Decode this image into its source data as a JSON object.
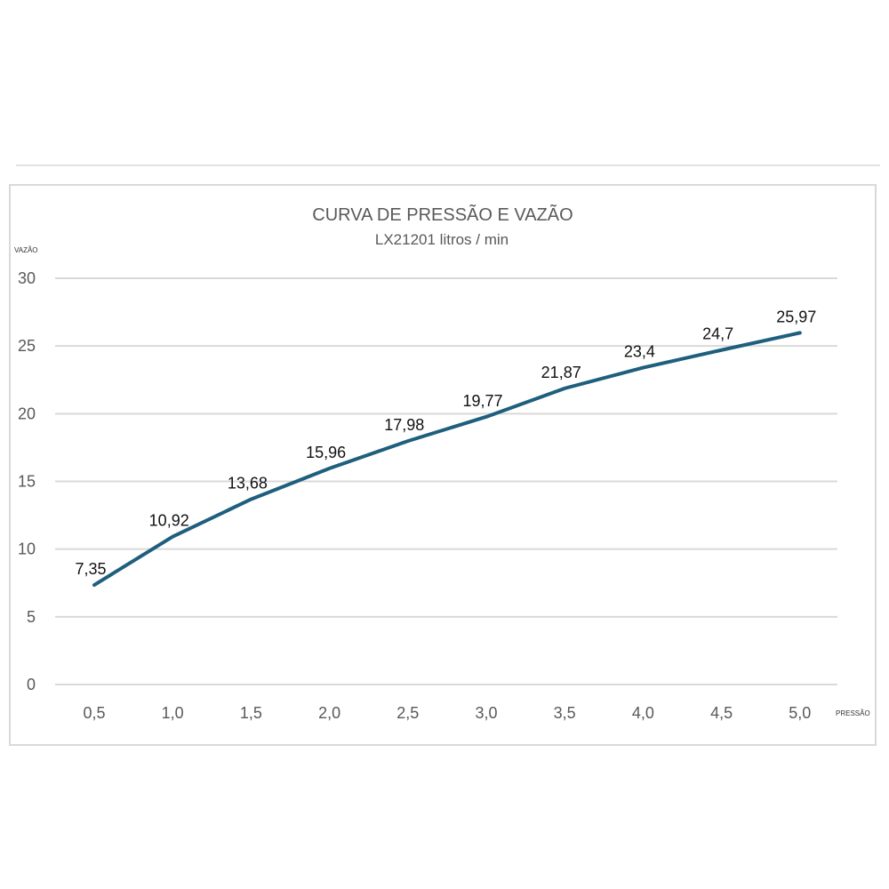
{
  "chart_data": {
    "type": "line",
    "title": "CURVA DE PRESSÃO E VAZÃO",
    "subtitle": "LX21201  litros / min",
    "xlabel": "PRESSÃO",
    "ylabel": "VAZÃO",
    "categories": [
      "0,5",
      "1,0",
      "1,5",
      "2,0",
      "2,5",
      "3,0",
      "3,5",
      "4,0",
      "4,5",
      "5,0"
    ],
    "values": [
      7.35,
      10.92,
      13.68,
      15.96,
      17.98,
      19.77,
      21.87,
      23.4,
      24.7,
      25.97
    ],
    "data_labels": [
      "7,35",
      "10,92",
      "13,68",
      "15,96",
      "17,98",
      "19,77",
      "21,87",
      "23,4",
      "24,7",
      "25,97"
    ],
    "yticks": [
      "0",
      "5",
      "10",
      "15",
      "20",
      "25",
      "30"
    ],
    "ylim": [
      0,
      30
    ],
    "grid": true,
    "legend": "none",
    "line_color": "#1f5f7e"
  }
}
